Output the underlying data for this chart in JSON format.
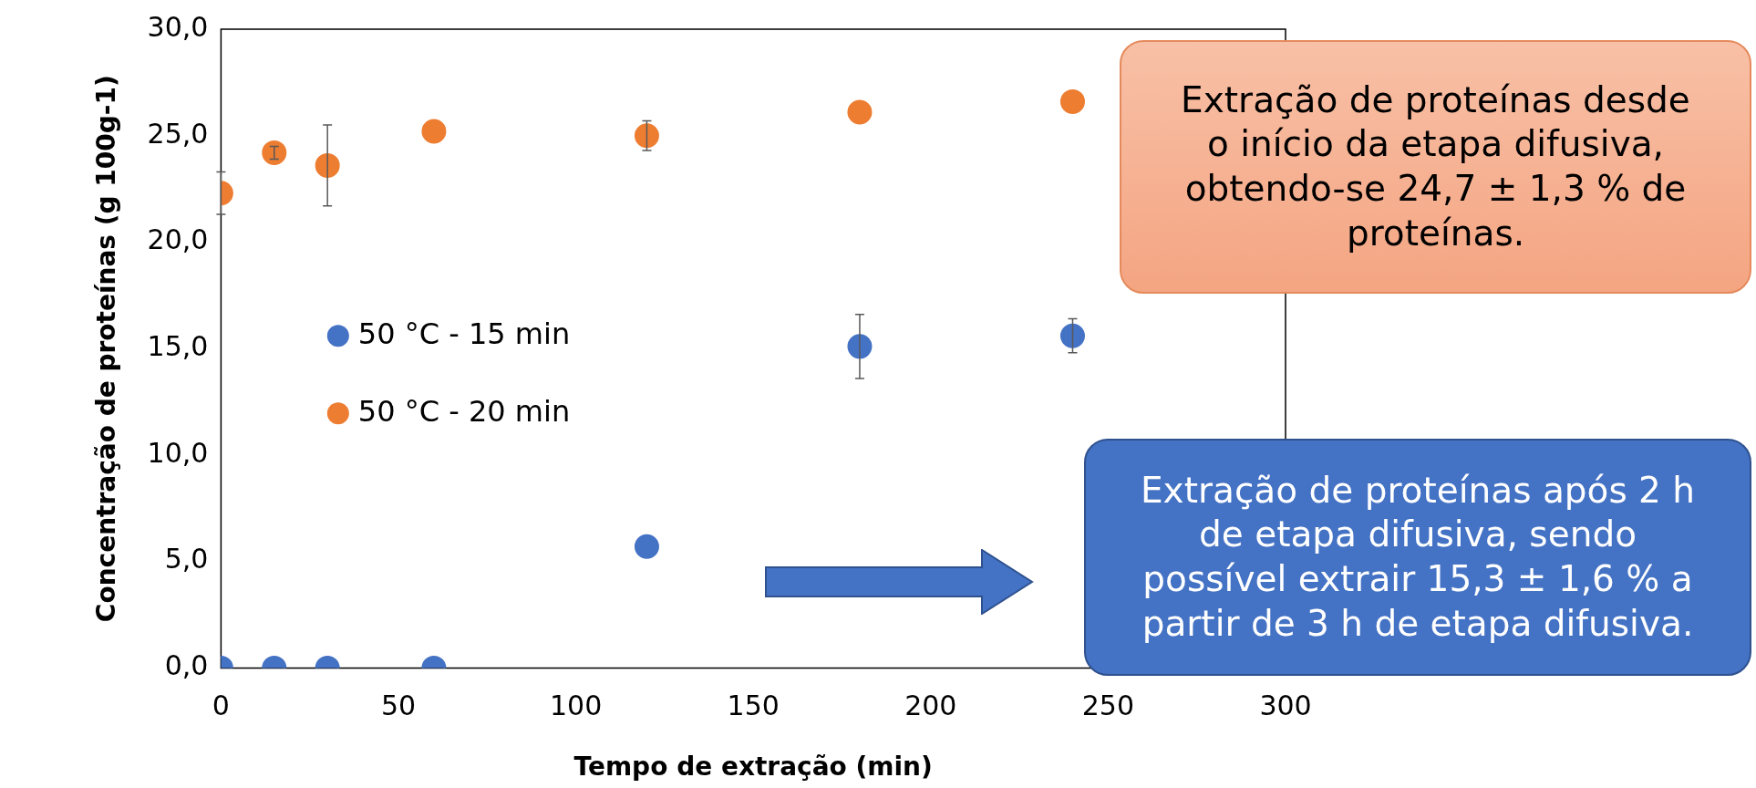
{
  "chart_data": {
    "type": "scatter",
    "xlabel": "Tempo de extração (min)",
    "ylabel": "Concentração de proteínas (g 100g-1)",
    "xlim": [
      0,
      300
    ],
    "xticks": [
      0,
      50,
      100,
      150,
      200,
      250,
      300
    ],
    "ylim": [
      0,
      30
    ],
    "yticks": [
      {
        "value": 0,
        "label": "0,0"
      },
      {
        "value": 5,
        "label": "5,0"
      },
      {
        "value": 10,
        "label": "10,0"
      },
      {
        "value": 15,
        "label": "15,0"
      },
      {
        "value": 20,
        "label": "20,0"
      },
      {
        "value": 25,
        "label": "25,0"
      },
      {
        "value": 30,
        "label": "30,0"
      }
    ],
    "grid": false,
    "legend": "left",
    "marker": "circle",
    "series": [
      {
        "name": "50 °C - 15 min",
        "color": "#4472c4",
        "x": [
          0,
          15,
          30,
          60,
          120,
          180,
          240
        ],
        "values": [
          0,
          0,
          0,
          0,
          5.7,
          15.1,
          15.6
        ],
        "errors": [
          null,
          null,
          null,
          null,
          null,
          1.5,
          0.8
        ]
      },
      {
        "name": "50 °C - 20 min",
        "color": "#ed7d31",
        "x": [
          0,
          15,
          30,
          60,
          120,
          180,
          240
        ],
        "values": [
          22.3,
          24.2,
          23.6,
          25.2,
          25.0,
          26.1,
          26.6
        ],
        "errors": [
          1.0,
          0.3,
          1.9,
          null,
          0.7,
          null,
          null
        ]
      }
    ],
    "annotations": [
      "Extração de proteínas desde o início da etapa difusiva, obtendo-se 24,7 ± 1,3 % de proteínas.",
      "Extração de proteínas após 2 h de etapa difusiva, sendo possível extrair 15,3 ± 1,6 % a partir de 3 h de etapa difusiva."
    ]
  }
}
